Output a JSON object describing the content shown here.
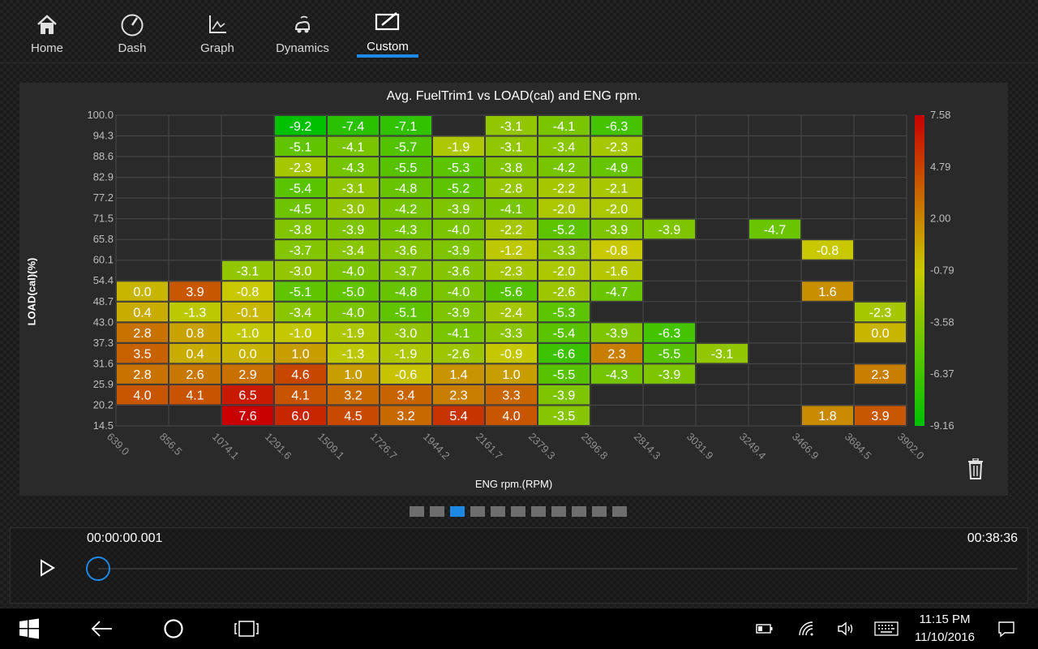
{
  "nav": {
    "items": [
      {
        "label": "Home",
        "icon": "home-icon"
      },
      {
        "label": "Dash",
        "icon": "gauge-icon"
      },
      {
        "label": "Graph",
        "icon": "graph-icon"
      },
      {
        "label": "Dynamics",
        "icon": "car-dynamics-icon"
      },
      {
        "label": "Custom",
        "icon": "edit-icon",
        "active": true
      }
    ]
  },
  "chart_data": {
    "type": "heatmap",
    "title": "Avg. FuelTrim1 vs LOAD(cal) and ENG rpm.",
    "xlabel": "ENG rpm.(RPM)",
    "ylabel": "LOAD(cal)(%)",
    "x_ticks": [
      "639.0",
      "856.5",
      "1074.1",
      "1291.6",
      "1509.1",
      "1726.7",
      "1944.2",
      "2161.7",
      "2379.3",
      "2596.8",
      "2814.3",
      "3031.9",
      "3249.4",
      "3466.9",
      "3684.5",
      "3902.0"
    ],
    "y_ticks": [
      "100.0",
      "94.3",
      "88.6",
      "82.9",
      "77.2",
      "71.5",
      "65.8",
      "60.1",
      "54.4",
      "48.7",
      "43.0",
      "37.3",
      "31.6",
      "25.9",
      "20.2",
      "14.5"
    ],
    "colorbar_ticks": [
      "7.58",
      "4.79",
      "2.00",
      "-0.79",
      "-3.58",
      "-6.37",
      "-9.16"
    ],
    "color_range": [
      -9.16,
      7.58
    ],
    "color_scale": [
      "#00c000",
      "#c8c800",
      "#c80000"
    ],
    "grid": true,
    "rows": [
      [
        null,
        null,
        null,
        -9.2,
        -7.4,
        -7.1,
        null,
        -3.1,
        -4.1,
        -6.3,
        null,
        null,
        null,
        null,
        null
      ],
      [
        null,
        null,
        null,
        -5.1,
        -4.1,
        -5.7,
        -1.9,
        -3.1,
        -3.4,
        -2.3,
        null,
        null,
        null,
        null,
        null
      ],
      [
        null,
        null,
        null,
        -2.3,
        -4.3,
        -5.5,
        -5.3,
        -3.8,
        -4.2,
        -4.9,
        null,
        null,
        null,
        null,
        null
      ],
      [
        null,
        null,
        null,
        -5.4,
        -3.1,
        -4.8,
        -5.2,
        -2.8,
        -2.2,
        -2.1,
        null,
        null,
        null,
        null,
        null
      ],
      [
        null,
        null,
        null,
        -4.5,
        -3.0,
        -4.2,
        -3.9,
        -4.1,
        -2.0,
        -2.0,
        null,
        null,
        null,
        null,
        null
      ],
      [
        null,
        null,
        null,
        -3.8,
        -3.9,
        -4.3,
        -4.0,
        -2.2,
        -5.2,
        -3.9,
        -3.9,
        null,
        -4.7,
        null,
        null
      ],
      [
        null,
        null,
        null,
        -3.7,
        -3.4,
        -3.6,
        -3.9,
        -1.2,
        -3.3,
        -0.8,
        null,
        null,
        null,
        -0.8,
        null
      ],
      [
        null,
        null,
        -3.1,
        -3.0,
        -4.0,
        -3.7,
        -3.6,
        -2.3,
        -2.0,
        -1.6,
        null,
        null,
        null,
        null,
        null
      ],
      [
        0.0,
        3.9,
        -0.8,
        -5.1,
        -5.0,
        -4.8,
        -4.0,
        -5.6,
        -2.6,
        -4.7,
        null,
        null,
        null,
        1.6,
        null
      ],
      [
        0.4,
        -1.3,
        -0.1,
        -3.4,
        -4.0,
        -5.1,
        -3.9,
        -2.4,
        -5.3,
        null,
        null,
        null,
        null,
        null,
        -2.3
      ],
      [
        2.8,
        0.8,
        -1.0,
        -1.0,
        -1.9,
        -3.0,
        -4.1,
        -3.3,
        -5.4,
        -3.9,
        -6.3,
        null,
        null,
        null,
        0.0
      ],
      [
        3.5,
        0.4,
        0.0,
        1.0,
        -1.3,
        -1.9,
        -2.6,
        -0.9,
        -6.6,
        2.3,
        -5.5,
        -3.1,
        null,
        null,
        null
      ],
      [
        2.8,
        2.6,
        2.9,
        4.6,
        1.0,
        -0.6,
        1.4,
        1.0,
        -5.5,
        -4.3,
        -3.9,
        null,
        null,
        null,
        2.3
      ],
      [
        4.0,
        4.1,
        6.5,
        4.1,
        3.2,
        3.4,
        2.3,
        3.3,
        -3.9,
        null,
        null,
        null,
        null,
        null,
        null
      ],
      [
        null,
        null,
        7.6,
        6.0,
        4.5,
        3.2,
        5.4,
        4.0,
        -3.5,
        null,
        null,
        null,
        null,
        1.8,
        3.9
      ]
    ]
  },
  "pages": {
    "count": 11,
    "active_index": 2
  },
  "playback": {
    "start_time": "00:00:00.001",
    "end_time": "00:38:36",
    "play_icon": "play-icon",
    "position_fraction": 0.0
  },
  "taskbar": {
    "time": "11:15 PM",
    "date": "11/10/2016",
    "icons": [
      "windows-start-icon",
      "back-icon",
      "cortana-icon",
      "task-view-icon",
      "battery-icon",
      "network-icon",
      "volume-icon",
      "keyboard-icon",
      "notifications-icon"
    ]
  },
  "colors": {
    "accent": "#1e88e5",
    "background": "#1b1b1b",
    "panel": "#2a2a2a"
  }
}
